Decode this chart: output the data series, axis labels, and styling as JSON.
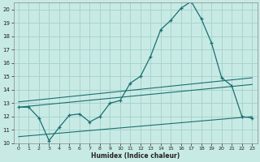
{
  "xlabel": "Humidex (Indice chaleur)",
  "bg_color": "#c8eae5",
  "grid_color": "#a8d4ce",
  "line_color": "#1a7070",
  "xlim": [
    -0.5,
    23.5
  ],
  "ylim": [
    10,
    20.5
  ],
  "yticks": [
    10,
    11,
    12,
    13,
    14,
    15,
    16,
    17,
    18,
    19,
    20
  ],
  "xticks": [
    0,
    1,
    2,
    3,
    4,
    5,
    6,
    7,
    8,
    9,
    10,
    11,
    12,
    13,
    14,
    15,
    16,
    17,
    18,
    19,
    20,
    21,
    22,
    23
  ],
  "series1_x": [
    0,
    1,
    2,
    3,
    4,
    5,
    6,
    7,
    8,
    9,
    10,
    11,
    12,
    13,
    14,
    15,
    16,
    17,
    18,
    19,
    20,
    21,
    22,
    23
  ],
  "series1_y": [
    12.7,
    12.7,
    11.9,
    10.2,
    11.2,
    12.1,
    12.2,
    11.6,
    12.0,
    13.0,
    13.2,
    14.5,
    15.0,
    16.5,
    18.5,
    19.2,
    20.1,
    20.6,
    19.3,
    17.5,
    14.9,
    14.3,
    12.0,
    11.9
  ],
  "trend1_x": [
    0,
    23
  ],
  "trend1_y": [
    12.7,
    14.4
  ],
  "trend2_x": [
    0,
    23
  ],
  "trend2_y": [
    13.1,
    14.9
  ],
  "trend3_x": [
    0,
    23
  ],
  "trend3_y": [
    10.5,
    12.0
  ]
}
